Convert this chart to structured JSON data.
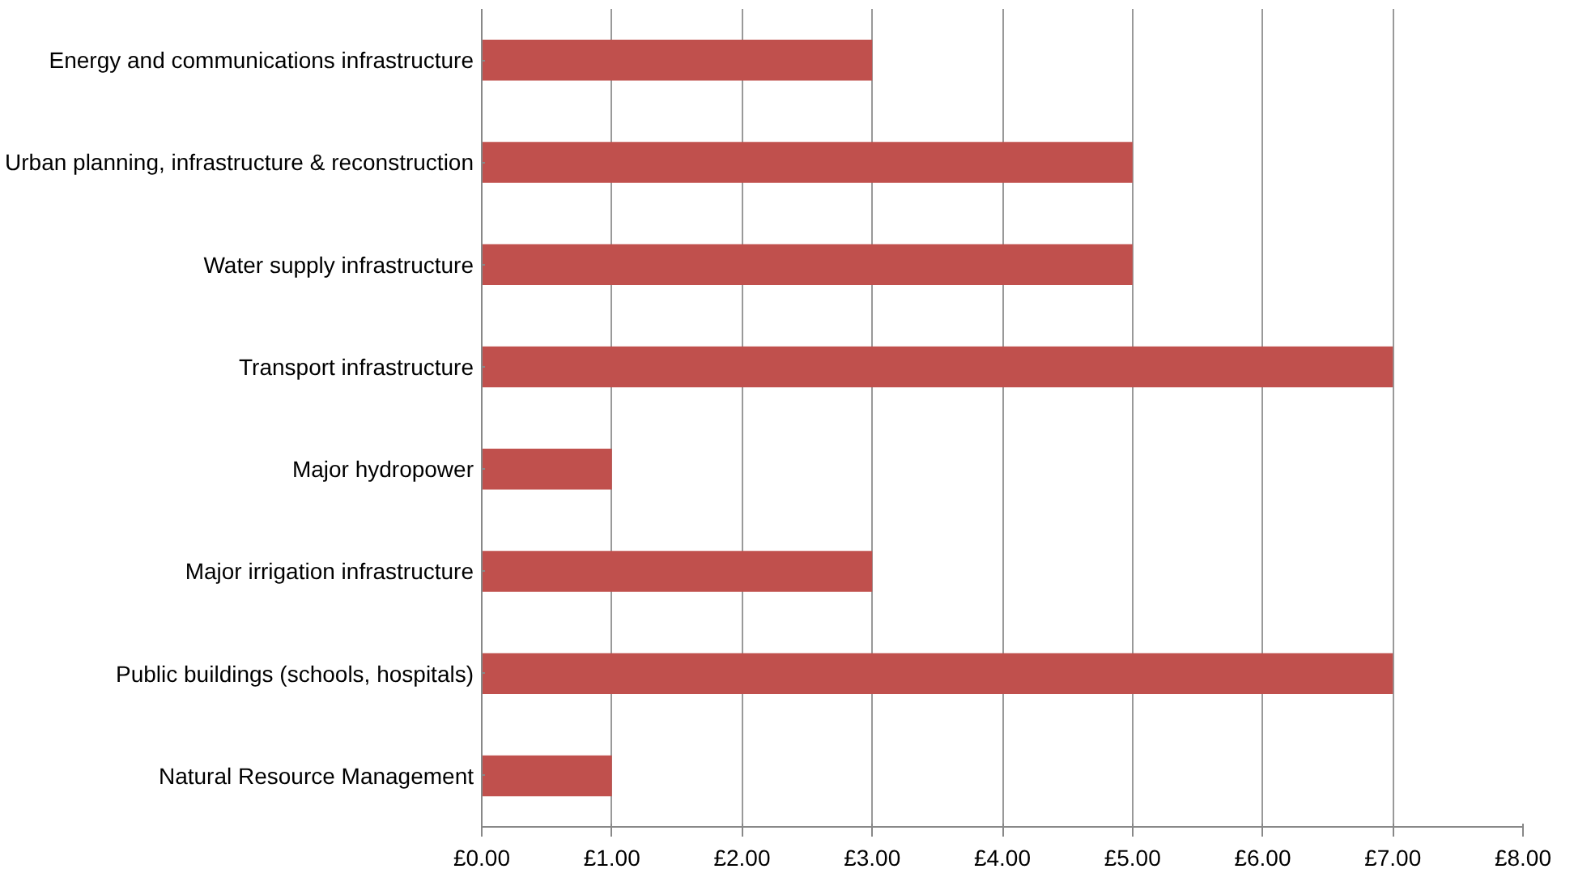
{
  "chart_data": {
    "type": "bar",
    "orientation": "horizontal",
    "categories": [
      "Energy and communications infrastructure",
      "Urban planning, infrastructure & reconstruction",
      "Water supply infrastructure",
      "Transport infrastructure",
      "Major hydropower",
      "Major irrigation infrastructure",
      "Public buildings (schools, hospitals)",
      "Natural Resource Management"
    ],
    "values": [
      3,
      5,
      5,
      7,
      1,
      3,
      7,
      1
    ],
    "color": "#c0504d",
    "xlim": [
      0,
      8
    ],
    "xticks": [
      {
        "value": 0,
        "label": "£0.00"
      },
      {
        "value": 1,
        "label": "£1.00"
      },
      {
        "value": 2,
        "label": "£2.00"
      },
      {
        "value": 3,
        "label": "£3.00"
      },
      {
        "value": 4,
        "label": "£4.00"
      },
      {
        "value": 5,
        "label": "£5.00"
      },
      {
        "value": 6,
        "label": "£6.00"
      },
      {
        "value": 7,
        "label": "£7.00"
      },
      {
        "value": 8,
        "label": "£8.00"
      }
    ],
    "grid": "x"
  }
}
